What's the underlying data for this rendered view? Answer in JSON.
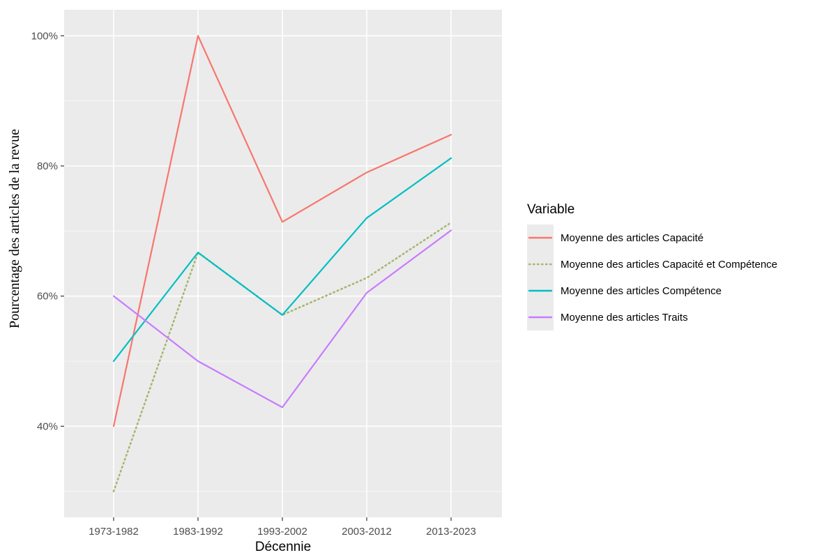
{
  "chart_data": {
    "type": "line",
    "xlabel": "Décennie",
    "ylabel": "Pourcentage des articles de la revue",
    "categories": [
      "1973-1982",
      "1983-1992",
      "1993-2002",
      "2003-2012",
      "2013-2023"
    ],
    "ylim": [
      26,
      104
    ],
    "yticks": [
      40,
      60,
      80,
      100
    ],
    "ytick_labels": [
      "40%",
      "60%",
      "80%",
      "100%"
    ],
    "grid": true,
    "legend": {
      "title": "Variable",
      "position": "right"
    },
    "series": [
      {
        "name": "Moyenne des articles Capacité",
        "color": "#F8766D",
        "style": "solid",
        "values": [
          40,
          100,
          71.4,
          79,
          84.8
        ]
      },
      {
        "name": "Moyenne des articles Capacité et Compétence",
        "color": "#A3B86C",
        "style": "dotted",
        "values": [
          30,
          66.7,
          57.1,
          62.8,
          71.3
        ]
      },
      {
        "name": "Moyenne des articles Compétence",
        "color": "#00BFC4",
        "style": "solid",
        "values": [
          50,
          66.7,
          57.1,
          72,
          81.2
        ]
      },
      {
        "name": "Moyenne des articles Traits",
        "color": "#C77CFF",
        "style": "solid",
        "values": [
          60,
          50,
          42.9,
          60.5,
          70.1
        ]
      }
    ]
  }
}
